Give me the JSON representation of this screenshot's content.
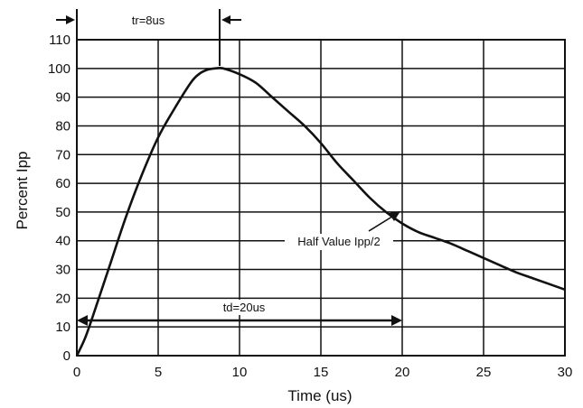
{
  "chart_data": {
    "type": "line",
    "title": "",
    "xlabel": "Time (us)",
    "ylabel": "Percent Ipp",
    "xlim": [
      0,
      30
    ],
    "ylim": [
      0,
      110
    ],
    "x_ticks": [
      0,
      5,
      10,
      15,
      20,
      25,
      30
    ],
    "y_ticks": [
      0,
      10,
      20,
      30,
      40,
      50,
      60,
      70,
      80,
      90,
      100,
      110
    ],
    "grid": true,
    "legend": "none",
    "series": [
      {
        "x": [
          0,
          0.5,
          1,
          2,
          3,
          4,
          5,
          6,
          7,
          7.5,
          8,
          8.5,
          9,
          10,
          11,
          12,
          13,
          14,
          15,
          16,
          17,
          18,
          19,
          20,
          21,
          22,
          23,
          24,
          25,
          26,
          27,
          28,
          29,
          30
        ],
        "values": [
          0,
          6,
          14,
          31,
          48,
          63,
          76,
          86,
          95,
          98,
          99.5,
          100,
          100,
          98,
          95,
          90,
          85,
          80,
          74,
          67,
          61,
          55,
          50,
          46,
          43,
          41,
          39,
          36.5,
          34,
          31.5,
          29,
          27,
          25,
          23
        ],
        "color": "#111111"
      }
    ],
    "annotations": {
      "rise_time_label": "tr=8us",
      "duration_label": "td=20us",
      "half_value_label": "Half Value Ipp/2"
    }
  }
}
